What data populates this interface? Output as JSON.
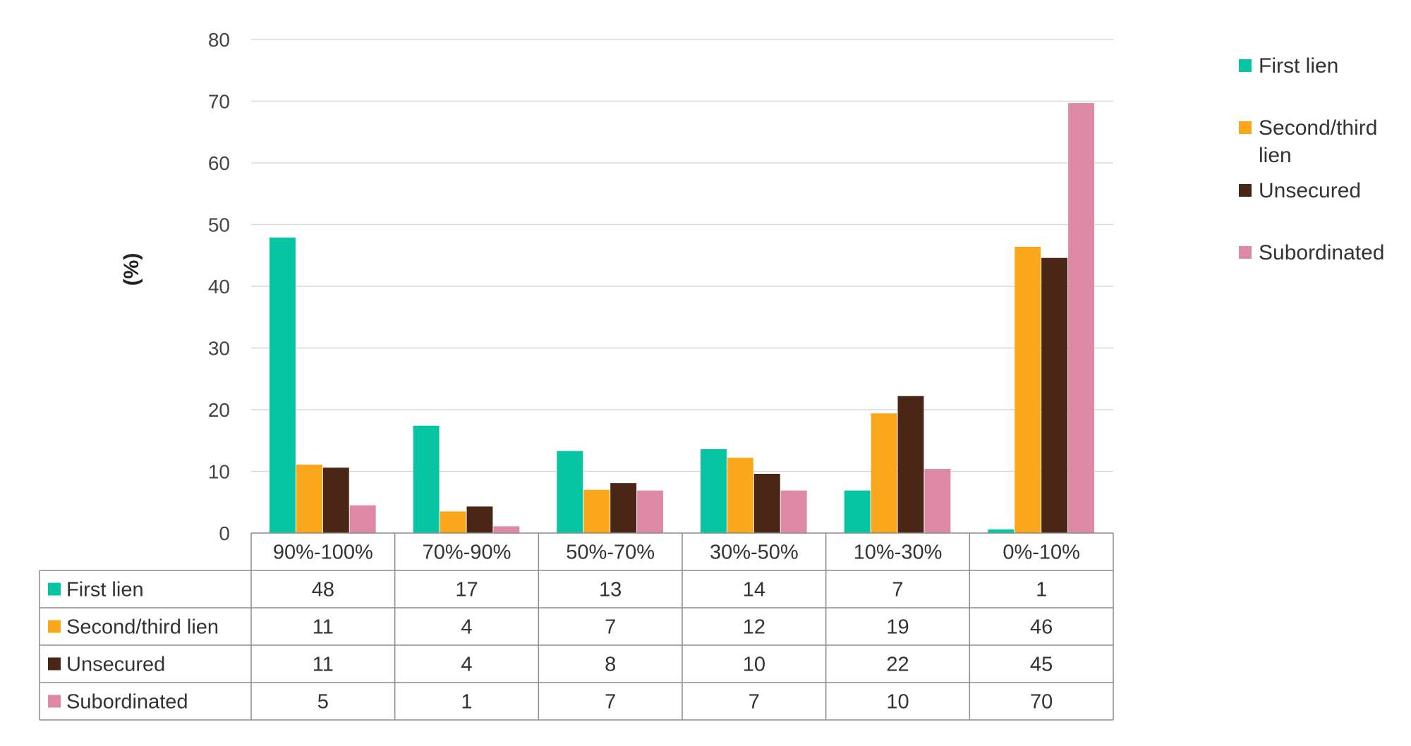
{
  "chart_data": {
    "type": "bar",
    "title": "",
    "xlabel": "",
    "ylabel": "(%)",
    "ylim": [
      0,
      80
    ],
    "yticks": [
      0,
      10,
      20,
      30,
      40,
      50,
      60,
      70,
      80
    ],
    "grid": true,
    "legend_position": "right",
    "categories": [
      "90%-100%",
      "70%-90%",
      "50%-70%",
      "30%-50%",
      "10%-30%",
      "0%-10%"
    ],
    "series": [
      {
        "name": "First lien",
        "legend_label": [
          "First lien"
        ],
        "color": "#07c4a3",
        "values": [
          47.9,
          17.4,
          13.3,
          13.6,
          6.9,
          0.6
        ],
        "table_values": [
          "48",
          "17",
          "13",
          "14",
          "7",
          "1"
        ]
      },
      {
        "name": "Second/third lien",
        "legend_label": [
          "Second/third",
          "lien"
        ],
        "color": "#fba71b",
        "values": [
          11.1,
          3.5,
          7.0,
          12.2,
          19.4,
          46.4
        ],
        "table_values": [
          "11",
          "4",
          "7",
          "12",
          "19",
          "46"
        ]
      },
      {
        "name": "Unsecured",
        "legend_label": [
          "Unsecured"
        ],
        "color": "#4a2616",
        "values": [
          10.6,
          4.3,
          8.1,
          9.6,
          22.2,
          44.6
        ],
        "table_values": [
          "11",
          "4",
          "8",
          "10",
          "22",
          "45"
        ]
      },
      {
        "name": "Subordinated",
        "legend_label": [
          "Subordinated"
        ],
        "color": "#de8aa6",
        "values": [
          4.5,
          1.1,
          6.9,
          6.9,
          10.4,
          69.7
        ],
        "table_values": [
          "5",
          "1",
          "7",
          "7",
          "10",
          "70"
        ]
      }
    ]
  }
}
